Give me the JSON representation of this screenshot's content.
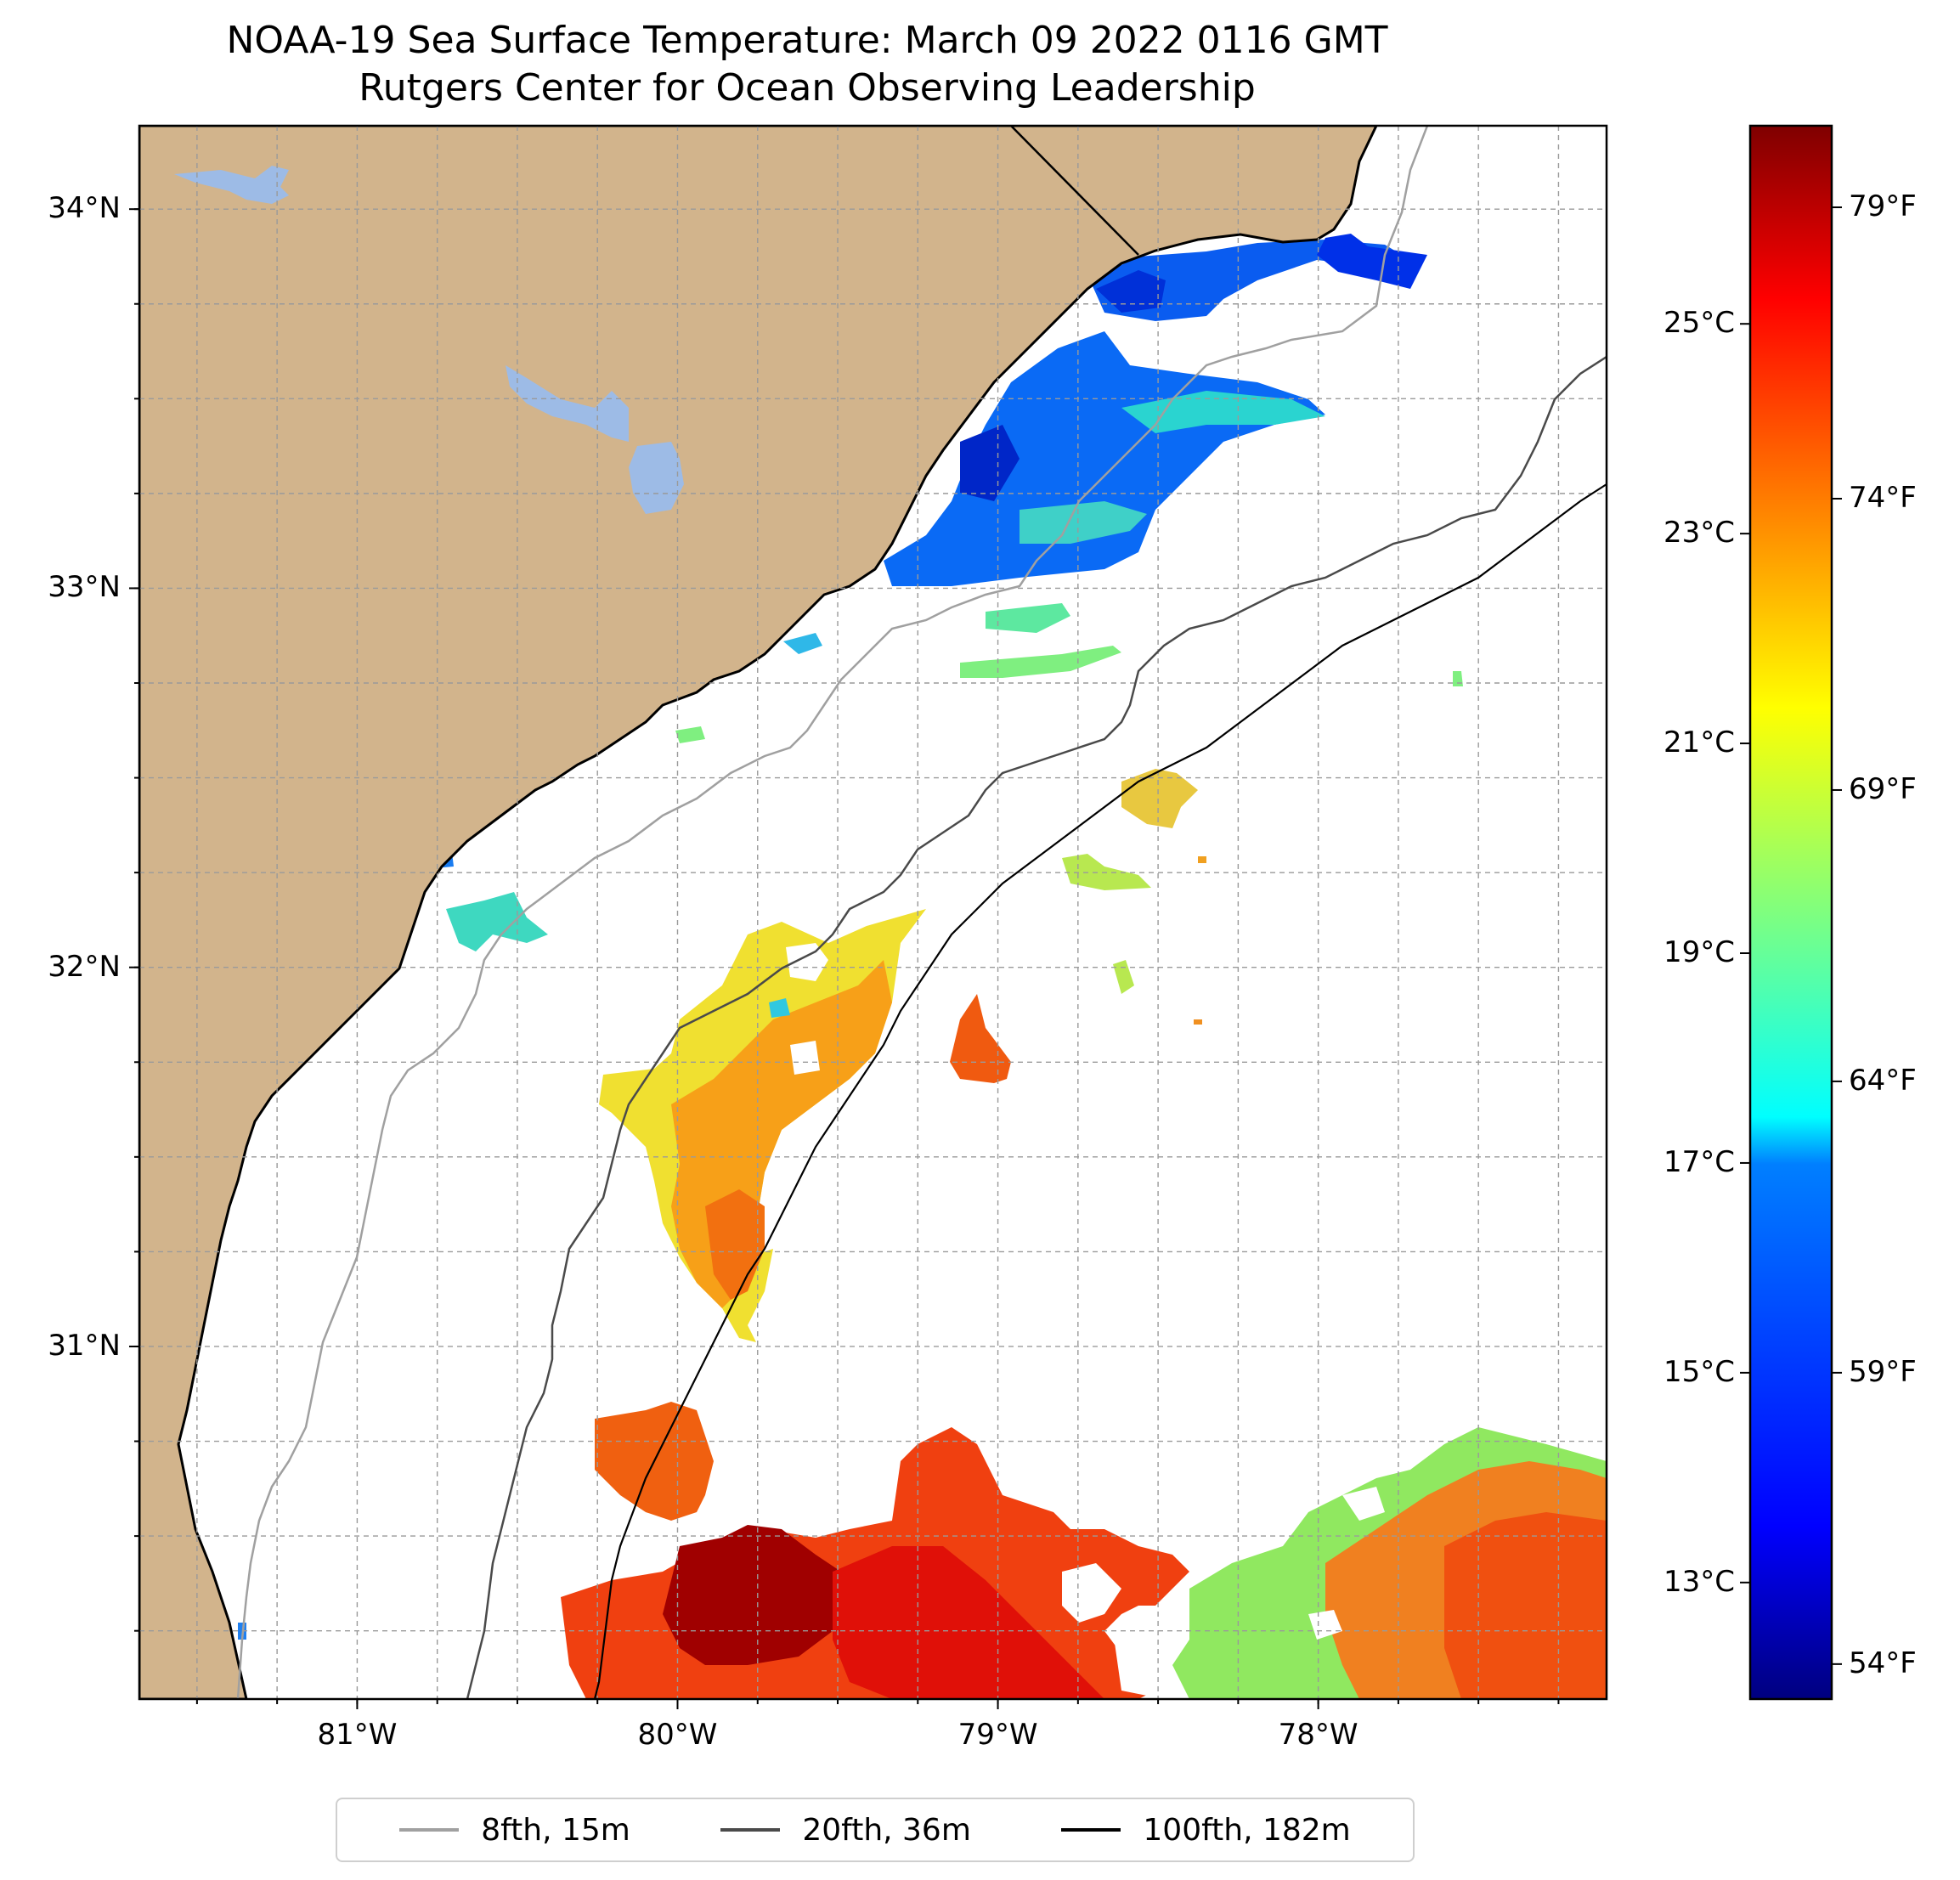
{
  "title": {
    "line1": "NOAA-19 Sea Surface Temperature: March 09 2022 0116 GMT",
    "line2": "Rutgers Center for Ocean Observing Leadership"
  },
  "axes": {
    "lon_ticks": [
      {
        "value": -81,
        "label": "81°W"
      },
      {
        "value": -80,
        "label": "80°W"
      },
      {
        "value": -79,
        "label": "79°W"
      },
      {
        "value": -78,
        "label": "78°W"
      }
    ],
    "lat_ticks": [
      {
        "value": 34,
        "label": "34°N"
      },
      {
        "value": 33,
        "label": "33°N"
      },
      {
        "value": 32,
        "label": "32°N"
      },
      {
        "value": 31,
        "label": "31°N"
      }
    ],
    "lon_range": [
      -81.68,
      -77.1
    ],
    "lat_range": [
      30.07,
      34.22
    ]
  },
  "colorbar": {
    "celsius": [
      {
        "value": 25,
        "label": "25°C"
      },
      {
        "value": 23,
        "label": "23°C"
      },
      {
        "value": 21,
        "label": "21°C"
      },
      {
        "value": 19,
        "label": "19°C"
      },
      {
        "value": 17,
        "label": "17°C"
      },
      {
        "value": 15,
        "label": "15°C"
      },
      {
        "value": 13,
        "label": "13°C"
      }
    ],
    "fahrenheit": [
      {
        "value": 79,
        "label": "79°F"
      },
      {
        "value": 74,
        "label": "74°F"
      },
      {
        "value": 69,
        "label": "69°F"
      },
      {
        "value": 64,
        "label": "64°F"
      },
      {
        "value": 59,
        "label": "59°F"
      },
      {
        "value": 54,
        "label": "54°F"
      }
    ],
    "range_f": [
      53.4,
      80.4
    ],
    "colors": [
      "#00007f",
      "#0000ff",
      "#007fff",
      "#00ffff",
      "#7fff7f",
      "#ffff00",
      "#ff7f00",
      "#ff0000",
      "#7f0000"
    ]
  },
  "colors": {
    "land": "#d2b48c",
    "lake": "#9dbbe6",
    "isobath_8": "#a0a0a0",
    "isobath_20": "#4a4a4a",
    "isobath_100": "#000000"
  },
  "legend": [
    {
      "label": "8fth, 15m",
      "color": "#a0a0a0"
    },
    {
      "label": "20fth, 36m",
      "color": "#4a4a4a"
    },
    {
      "label": "100fth, 182m",
      "color": "#000000"
    }
  ]
}
